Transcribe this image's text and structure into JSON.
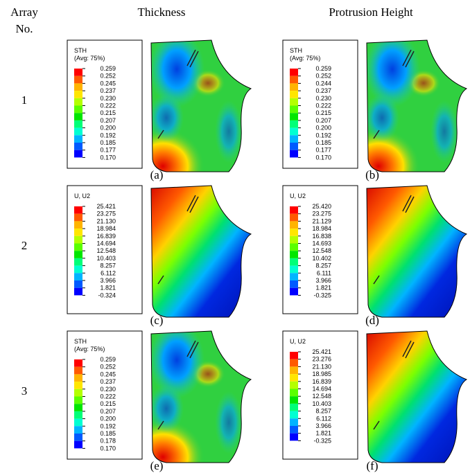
{
  "header": {
    "row_label": [
      "Array",
      "No."
    ],
    "columns": [
      "Thickness",
      "Protrusion Height"
    ]
  },
  "rows": [
    "1",
    "2",
    "3"
  ],
  "panels": [
    {
      "caption": "(a)",
      "legend_title": [
        "STH",
        "(Avg: 75%)"
      ],
      "legend_values": [
        "0.259",
        "0.252",
        "0.245",
        "0.237",
        "0.230",
        "0.222",
        "0.215",
        "0.207",
        "0.200",
        "0.192",
        "0.185",
        "0.177",
        "0.170"
      ]
    },
    {
      "caption": "(b)",
      "legend_title": [
        "STH",
        "(Avg: 75%)"
      ],
      "legend_values": [
        "0.259",
        "0.252",
        "0.244",
        "0.237",
        "0.230",
        "0.222",
        "0.215",
        "0.207",
        "0.200",
        "0.192",
        "0.185",
        "0.177",
        "0.170"
      ]
    },
    {
      "caption": "(c)",
      "legend_title": [
        "U, U2"
      ],
      "legend_values": [
        "25.421",
        "23.275",
        "21.130",
        "18.984",
        "16.839",
        "14.694",
        "12.548",
        "10.403",
        "8.257",
        "6.112",
        "3.966",
        "1.821",
        "-0.324"
      ]
    },
    {
      "caption": "(d)",
      "legend_title": [
        "U, U2"
      ],
      "legend_values": [
        "25.420",
        "23.275",
        "21.129",
        "18.984",
        "16.838",
        "14.693",
        "12.548",
        "10.402",
        "8.257",
        "6.111",
        "3.966",
        "1.821",
        "-0.325"
      ]
    },
    {
      "caption": "(e)",
      "legend_title": [
        "STH",
        "(Avg: 75%)"
      ],
      "legend_values": [
        "0.259",
        "0.252",
        "0.245",
        "0.237",
        "0.230",
        "0.222",
        "0.215",
        "0.207",
        "0.200",
        "0.192",
        "0.185",
        "0.178",
        "0.170"
      ]
    },
    {
      "caption": "(f)",
      "legend_title": [
        "U, U2"
      ],
      "legend_values": [
        "25.421",
        "23.276",
        "21.130",
        "18.985",
        "16.839",
        "14.694",
        "12.548",
        "10.403",
        "8.257",
        "6.112",
        "3.966",
        "1.821",
        "-0.325"
      ]
    }
  ]
}
